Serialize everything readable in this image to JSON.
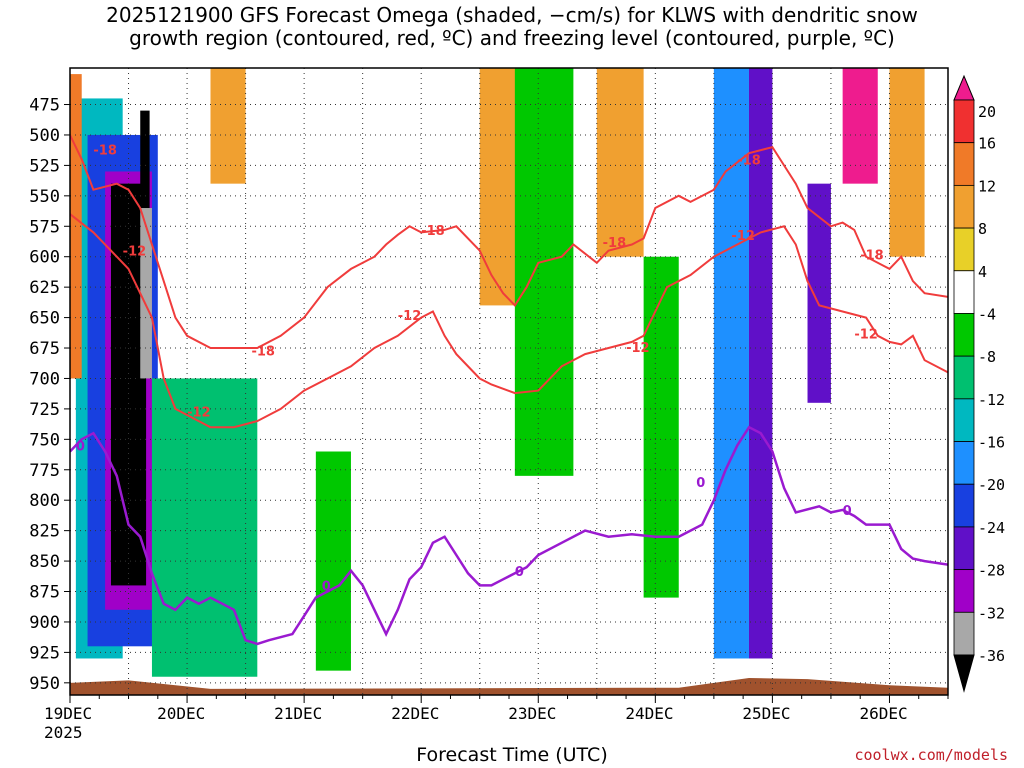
{
  "title_line1": "2025121900 GFS Forecast Omega (shaded, −cm/s) for KLWS with dendritic snow",
  "title_line2": "growth region (contoured, red, ºC) and freezing level (contoured, purple, ºC)",
  "credit": "coolwx.com/models",
  "chart_data": {
    "type": "heatmap",
    "title": "2025121900 GFS Forecast Omega (shaded, −cm/s) for KLWS with dendritic snow growth region (contoured, red, ºC) and freezing level (contoured, purple, ºC)",
    "xlabel": "Forecast Time (UTC)",
    "ylabel": "",
    "x_ticks": [
      "19DEC\n2025",
      "20DEC",
      "21DEC",
      "22DEC",
      "23DEC",
      "24DEC",
      "25DEC",
      "26DEC"
    ],
    "x_tick_labels": [
      {
        "label": "19DEC",
        "sub": "2025",
        "day": 0
      },
      {
        "label": "20DEC",
        "sub": "",
        "day": 1
      },
      {
        "label": "21DEC",
        "sub": "",
        "day": 2
      },
      {
        "label": "22DEC",
        "sub": "",
        "day": 3
      },
      {
        "label": "23DEC",
        "sub": "",
        "day": 4
      },
      {
        "label": "24DEC",
        "sub": "",
        "day": 5
      },
      {
        "label": "25DEC",
        "sub": "",
        "day": 6
      },
      {
        "label": "26DEC",
        "sub": "",
        "day": 7
      }
    ],
    "xlim_days": [
      0,
      7.5
    ],
    "y_ticks": [
      475,
      500,
      525,
      550,
      575,
      600,
      625,
      650,
      675,
      700,
      725,
      750,
      775,
      800,
      825,
      850,
      875,
      900,
      925,
      950
    ],
    "ylim": [
      445,
      960
    ],
    "grid": true,
    "colorbar": {
      "labels": [
        "20",
        "16",
        "12",
        "8",
        "4",
        "-4",
        "-8",
        "-12",
        "-16",
        "-20",
        "-24",
        "-28",
        "-32",
        "-36"
      ],
      "bins": [
        {
          "min": 20,
          "color": "#ee1c8e"
        },
        {
          "min": 16,
          "max": 20,
          "color": "#f03030"
        },
        {
          "min": 12,
          "max": 16,
          "color": "#f07a28"
        },
        {
          "min": 8,
          "max": 12,
          "color": "#f0a030"
        },
        {
          "min": 4,
          "max": 8,
          "color": "#e8d028"
        },
        {
          "min": -4,
          "max": 4,
          "color": "#ffffff"
        },
        {
          "min": -8,
          "max": -4,
          "color": "#00c800"
        },
        {
          "min": -12,
          "max": -8,
          "color": "#00c070"
        },
        {
          "min": -16,
          "max": -12,
          "color": "#00b8c0"
        },
        {
          "min": -20,
          "max": -16,
          "color": "#1e90ff"
        },
        {
          "min": -24,
          "max": -20,
          "color": "#1840e0"
        },
        {
          "min": -28,
          "max": -24,
          "color": "#6010c8"
        },
        {
          "min": -32,
          "max": -28,
          "color": "#a000c8"
        },
        {
          "min": -36,
          "max": -32,
          "color": "#a8a8a8"
        },
        {
          "max": -36,
          "color": "#000000"
        }
      ]
    },
    "ground_color": "#a0522d",
    "contours": {
      "dgz_red": {
        "color": "#f03c3c",
        "labels": [
          "-18",
          "-12",
          "-18",
          "-12",
          "-18",
          "-12",
          "-18",
          "-12",
          "-18",
          "-12",
          "-18",
          "-12"
        ],
        "minus18_upper": [
          [
            0.0,
            500
          ],
          [
            0.1,
            520
          ],
          [
            0.2,
            545
          ],
          [
            0.4,
            540
          ],
          [
            0.5,
            545
          ],
          [
            0.6,
            560
          ],
          [
            0.8,
            620
          ],
          [
            0.9,
            650
          ],
          [
            1.0,
            665
          ],
          [
            1.2,
            675
          ],
          [
            1.4,
            675
          ],
          [
            1.6,
            675
          ],
          [
            1.8,
            665
          ],
          [
            2.0,
            650
          ],
          [
            2.2,
            625
          ],
          [
            2.4,
            610
          ],
          [
            2.6,
            600
          ],
          [
            2.7,
            590
          ],
          [
            2.8,
            582
          ],
          [
            2.9,
            575
          ],
          [
            3.0,
            580
          ],
          [
            3.2,
            578
          ],
          [
            3.3,
            575
          ],
          [
            3.5,
            595
          ],
          [
            3.6,
            615
          ],
          [
            3.7,
            630
          ],
          [
            3.8,
            640
          ],
          [
            3.9,
            625
          ],
          [
            4.0,
            605
          ],
          [
            4.2,
            600
          ],
          [
            4.3,
            590
          ],
          [
            4.5,
            605
          ],
          [
            4.6,
            595
          ],
          [
            4.8,
            590
          ],
          [
            4.9,
            585
          ],
          [
            5.0,
            560
          ],
          [
            5.2,
            550
          ],
          [
            5.3,
            555
          ],
          [
            5.5,
            545
          ],
          [
            5.6,
            530
          ],
          [
            5.8,
            515
          ],
          [
            6.0,
            510
          ],
          [
            6.2,
            540
          ],
          [
            6.3,
            560
          ],
          [
            6.5,
            575
          ],
          [
            6.6,
            572
          ],
          [
            6.7,
            578
          ],
          [
            6.8,
            600
          ],
          [
            7.0,
            610
          ],
          [
            7.1,
            600
          ],
          [
            7.2,
            620
          ],
          [
            7.3,
            630
          ],
          [
            7.5,
            633
          ]
        ],
        "minus12_lower": [
          [
            0.0,
            565
          ],
          [
            0.2,
            580
          ],
          [
            0.4,
            600
          ],
          [
            0.5,
            610
          ],
          [
            0.6,
            630
          ],
          [
            0.7,
            650
          ],
          [
            0.8,
            700
          ],
          [
            0.9,
            725
          ],
          [
            1.0,
            730
          ],
          [
            1.2,
            740
          ],
          [
            1.4,
            740
          ],
          [
            1.6,
            735
          ],
          [
            1.8,
            725
          ],
          [
            2.0,
            710
          ],
          [
            2.2,
            700
          ],
          [
            2.4,
            690
          ],
          [
            2.6,
            675
          ],
          [
            2.8,
            665
          ],
          [
            3.0,
            650
          ],
          [
            3.1,
            645
          ],
          [
            3.2,
            665
          ],
          [
            3.3,
            680
          ],
          [
            3.5,
            700
          ],
          [
            3.6,
            705
          ],
          [
            3.8,
            712
          ],
          [
            4.0,
            710
          ],
          [
            4.2,
            690
          ],
          [
            4.4,
            680
          ],
          [
            4.6,
            675
          ],
          [
            4.8,
            670
          ],
          [
            4.9,
            665
          ],
          [
            5.0,
            645
          ],
          [
            5.1,
            625
          ],
          [
            5.3,
            615
          ],
          [
            5.5,
            600
          ],
          [
            5.7,
            590
          ],
          [
            5.9,
            580
          ],
          [
            6.1,
            575
          ],
          [
            6.2,
            590
          ],
          [
            6.3,
            620
          ],
          [
            6.4,
            640
          ],
          [
            6.6,
            645
          ],
          [
            6.8,
            650
          ],
          [
            6.9,
            665
          ],
          [
            7.0,
            670
          ],
          [
            7.1,
            672
          ],
          [
            7.2,
            665
          ],
          [
            7.3,
            685
          ],
          [
            7.5,
            695
          ]
        ]
      },
      "freezing_purple": {
        "color": "#9a1ad0",
        "label": "0",
        "points": [
          [
            0.0,
            760
          ],
          [
            0.1,
            750
          ],
          [
            0.2,
            745
          ],
          [
            0.3,
            760
          ],
          [
            0.4,
            780
          ],
          [
            0.5,
            820
          ],
          [
            0.6,
            830
          ],
          [
            0.7,
            860
          ],
          [
            0.8,
            885
          ],
          [
            0.9,
            890
          ],
          [
            1.0,
            880
          ],
          [
            1.1,
            885
          ],
          [
            1.2,
            880
          ],
          [
            1.4,
            890
          ],
          [
            1.5,
            915
          ],
          [
            1.6,
            918
          ],
          [
            1.7,
            915
          ],
          [
            1.9,
            910
          ],
          [
            2.0,
            895
          ],
          [
            2.1,
            880
          ],
          [
            2.2,
            875
          ],
          [
            2.3,
            870
          ],
          [
            2.4,
            858
          ],
          [
            2.5,
            870
          ],
          [
            2.6,
            890
          ],
          [
            2.7,
            910
          ],
          [
            2.8,
            890
          ],
          [
            2.9,
            865
          ],
          [
            3.0,
            855
          ],
          [
            3.1,
            835
          ],
          [
            3.2,
            830
          ],
          [
            3.3,
            845
          ],
          [
            3.4,
            860
          ],
          [
            3.5,
            870
          ],
          [
            3.6,
            870
          ],
          [
            3.7,
            865
          ],
          [
            3.8,
            860
          ],
          [
            3.9,
            855
          ],
          [
            4.0,
            845
          ],
          [
            4.2,
            835
          ],
          [
            4.4,
            825
          ],
          [
            4.6,
            830
          ],
          [
            4.8,
            828
          ],
          [
            5.0,
            830
          ],
          [
            5.2,
            830
          ],
          [
            5.4,
            820
          ],
          [
            5.5,
            800
          ],
          [
            5.6,
            775
          ],
          [
            5.7,
            755
          ],
          [
            5.8,
            740
          ],
          [
            5.9,
            745
          ],
          [
            6.0,
            760
          ],
          [
            6.1,
            790
          ],
          [
            6.2,
            810
          ],
          [
            6.4,
            805
          ],
          [
            6.5,
            810
          ],
          [
            6.6,
            808
          ],
          [
            6.7,
            813
          ],
          [
            6.8,
            820
          ],
          [
            7.0,
            820
          ],
          [
            7.1,
            840
          ],
          [
            7.2,
            848
          ],
          [
            7.3,
            850
          ],
          [
            7.5,
            853
          ]
        ]
      }
    },
    "shaded_cells": [
      {
        "x0": 0.05,
        "x1": 0.45,
        "p0": 470,
        "p1": 930,
        "v": -14
      },
      {
        "x0": 0.15,
        "x1": 0.75,
        "p0": 500,
        "p1": 920,
        "v": -22
      },
      {
        "x0": 0.3,
        "x1": 0.7,
        "p0": 530,
        "p1": 890,
        "v": -30
      },
      {
        "x0": 0.35,
        "x1": 0.65,
        "p0": 540,
        "p1": 870,
        "v": -40
      },
      {
        "x0": 0.6,
        "x1": 0.7,
        "p0": 560,
        "p1": 700,
        "v": -34
      },
      {
        "x0": 0.6,
        "x1": 0.68,
        "p0": 480,
        "p1": 560,
        "v": -40
      },
      {
        "x0": 1.0,
        "x1": 1.35,
        "p0": 720,
        "p1": 930,
        "v": -22
      },
      {
        "x0": 1.1,
        "x1": 1.3,
        "p0": 770,
        "p1": 900,
        "v": -30
      },
      {
        "x0": 1.15,
        "x1": 1.25,
        "p0": 790,
        "p1": 880,
        "v": -40
      },
      {
        "x0": 0.7,
        "x1": 1.6,
        "p0": 700,
        "p1": 945,
        "v": -10
      },
      {
        "x0": 0.0,
        "x1": 0.1,
        "p0": 450,
        "p1": 700,
        "v": 14
      },
      {
        "x0": 1.2,
        "x1": 1.5,
        "p0": 445,
        "p1": 540,
        "v": 10
      },
      {
        "x0": 2.1,
        "x1": 2.4,
        "p0": 760,
        "p1": 940,
        "v": -6
      },
      {
        "x0": 3.5,
        "x1": 3.9,
        "p0": 445,
        "p1": 640,
        "v": 8
      },
      {
        "x0": 3.8,
        "x1": 4.3,
        "p0": 445,
        "p1": 780,
        "v": -6
      },
      {
        "x0": 4.5,
        "x1": 4.9,
        "p0": 445,
        "p1": 600,
        "v": 10
      },
      {
        "x0": 4.9,
        "x1": 5.2,
        "p0": 600,
        "p1": 880,
        "v": -6
      },
      {
        "x0": 5.5,
        "x1": 5.8,
        "p0": 445,
        "p1": 930,
        "v": -18
      },
      {
        "x0": 5.8,
        "x1": 6.0,
        "p0": 445,
        "p1": 930,
        "v": -26
      },
      {
        "x0": 6.3,
        "x1": 6.5,
        "p0": 540,
        "p1": 720,
        "v": -26
      },
      {
        "x0": 6.6,
        "x1": 6.9,
        "p0": 445,
        "p1": 540,
        "v": 20
      },
      {
        "x0": 7.0,
        "x1": 7.3,
        "p0": 445,
        "p1": 600,
        "v": 10
      }
    ]
  }
}
